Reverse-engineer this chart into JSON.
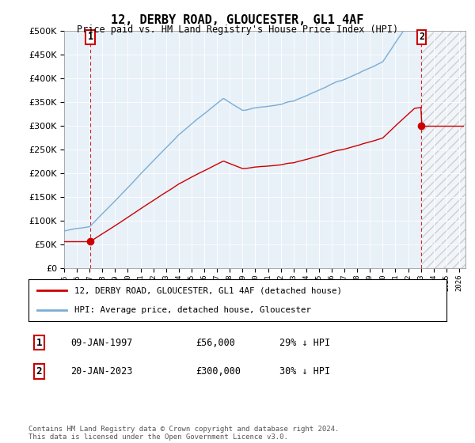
{
  "title": "12, DERBY ROAD, GLOUCESTER, GL1 4AF",
  "subtitle": "Price paid vs. HM Land Registry's House Price Index (HPI)",
  "legend_line1": "12, DERBY ROAD, GLOUCESTER, GL1 4AF (detached house)",
  "legend_line2": "HPI: Average price, detached house, Gloucester",
  "annotation1_label": "1",
  "annotation1_date": "09-JAN-1997",
  "annotation1_price": "£56,000",
  "annotation1_hpi": "29% ↓ HPI",
  "annotation2_label": "2",
  "annotation2_date": "20-JAN-2023",
  "annotation2_price": "£300,000",
  "annotation2_hpi": "30% ↓ HPI",
  "footer": "Contains HM Land Registry data © Crown copyright and database right 2024.\nThis data is licensed under the Open Government Licence v3.0.",
  "sale1_year": 1997.05,
  "sale1_value": 56000,
  "sale2_year": 2023.05,
  "sale2_value": 300000,
  "hpi_color": "#7aadd4",
  "sale_color": "#cc0000",
  "plot_bg": "#e8f0f8",
  "ylim_min": 0,
  "ylim_max": 500000,
  "xlim_min": 1995.0,
  "xlim_max": 2026.5
}
